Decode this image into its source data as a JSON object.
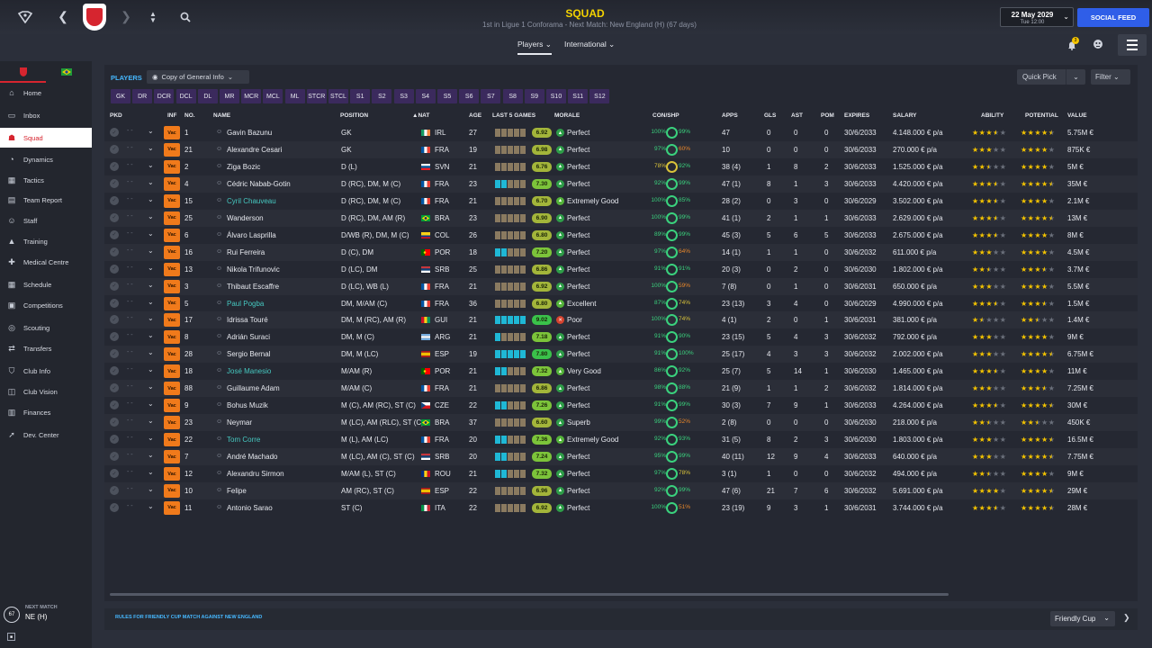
{
  "header": {
    "title": "SQUAD",
    "subtitle": "1st in Ligue 1 Conforama - Next Match: New England (H) (67 days)",
    "date": "22 May 2029",
    "time": "Tue 12:00",
    "social_feed": "SOCIAL FEED",
    "tabs": [
      {
        "label": "Players",
        "active": true
      },
      {
        "label": "International",
        "active": false
      }
    ],
    "notification_count": "3"
  },
  "sidebar": {
    "items": [
      {
        "label": "Home",
        "icon": "home-icon"
      },
      {
        "label": "Inbox",
        "icon": "inbox-icon"
      },
      {
        "label": "Squad",
        "icon": "squad-icon",
        "active": true
      },
      {
        "label": "Dynamics",
        "icon": "dynamics-icon"
      },
      {
        "label": "Tactics",
        "icon": "tactics-icon"
      },
      {
        "label": "Team Report",
        "icon": "report-icon"
      },
      {
        "label": "Staff",
        "icon": "staff-icon"
      },
      {
        "label": "Training",
        "icon": "training-icon"
      },
      {
        "label": "Medical Centre",
        "icon": "medical-icon"
      },
      {
        "label": "Schedule",
        "icon": "schedule-icon"
      },
      {
        "label": "Competitions",
        "icon": "competitions-icon"
      },
      {
        "label": "Scouting",
        "icon": "scouting-icon"
      },
      {
        "label": "Transfers",
        "icon": "transfers-icon"
      },
      {
        "label": "Club Info",
        "icon": "club-info-icon"
      },
      {
        "label": "Club Vision",
        "icon": "club-vision-icon"
      },
      {
        "label": "Finances",
        "icon": "finances-icon"
      },
      {
        "label": "Dev. Center",
        "icon": "dev-center-icon"
      }
    ],
    "next_match_label": "NEXT MATCH",
    "next_match_value": "NE (H)",
    "next_match_days": "67"
  },
  "toolbar": {
    "players_label": "PLAYERS",
    "view": "Copy of General Info",
    "quick_pick": "Quick Pick",
    "filter": "Filter"
  },
  "position_filters": [
    "GK",
    "DR",
    "DCR",
    "DCL",
    "DL",
    "MR",
    "MCR",
    "MCL",
    "ML",
    "STCR",
    "STCL",
    "S1",
    "S2",
    "S3",
    "S4",
    "S5",
    "S6",
    "S7",
    "S8",
    "S9",
    "S10",
    "S11",
    "S12"
  ],
  "columns": {
    "pkd": "PKD",
    "inf": "INF",
    "no": "NO.",
    "name": "NAME",
    "position": "POSITION",
    "nat": "NAT",
    "age": "AGE",
    "last5": "LAST 5 GAMES",
    "morale": "MORALE",
    "conshp": "CON/SHP",
    "apps": "APPS",
    "gls": "GLS",
    "ast": "AST",
    "pom": "POM",
    "expires": "EXPIRES",
    "salary": "SALARY",
    "ability": "ABILITY",
    "potential": "POTENTIAL",
    "value": "VALUE"
  },
  "inf_label": "Vac",
  "players": [
    {
      "no": "1",
      "name": "Gavin Bazunu",
      "pos": "GK",
      "nat": "IRL",
      "age": "27",
      "rating": "6.92",
      "morale": "Perfect",
      "con": "100%",
      "shp": "99%",
      "apps": "47",
      "gls": "0",
      "ast": "0",
      "pom": "0",
      "exp": "30/6/2033",
      "sal": "4.148.000 € p/a",
      "abi": 3.5,
      "pot": 4.5,
      "val": "5.75M €"
    },
    {
      "no": "21",
      "name": "Alexandre Cesari",
      "pos": "GK",
      "nat": "FRA",
      "age": "19",
      "rating": "6.98",
      "morale": "Perfect",
      "con": "97%",
      "shp": "60%",
      "apps": "10",
      "gls": "0",
      "ast": "0",
      "pom": "0",
      "exp": "30/6/2033",
      "sal": "270.000 € p/a",
      "abi": 3,
      "pot": 4,
      "val": "875K €"
    },
    {
      "no": "2",
      "name": "Ziga Bozic",
      "pos": "D (L)",
      "nat": "SVN",
      "age": "21",
      "rating": "6.76",
      "morale": "Perfect",
      "con": "78%",
      "shp": "92%",
      "apps": "38 (4)",
      "gls": "1",
      "ast": "8",
      "pom": "2",
      "exp": "30/6/2033",
      "sal": "1.525.000 € p/a",
      "abi": 2.5,
      "pot": 4,
      "val": "5M €"
    },
    {
      "no": "4",
      "name": "Cédric Nabab-Gotin",
      "pos": "D (RC), DM, M (C)",
      "nat": "FRA",
      "age": "23",
      "rating": "7.30",
      "morale": "Perfect",
      "con": "92%",
      "shp": "99%",
      "apps": "47 (1)",
      "gls": "8",
      "ast": "1",
      "pom": "3",
      "exp": "30/6/2033",
      "sal": "4.420.000 € p/a",
      "abi": 3.5,
      "pot": 4.5,
      "val": "35M €"
    },
    {
      "no": "15",
      "name": "Cyril Chauveau",
      "pos": "D (RC), DM, M (C)",
      "nat": "FRA",
      "age": "21",
      "rating": "6.70",
      "morale": "Extremely Good",
      "con": "100%",
      "shp": "85%",
      "apps": "28 (2)",
      "gls": "0",
      "ast": "3",
      "pom": "0",
      "exp": "30/6/2029",
      "sal": "3.502.000 € p/a",
      "abi": 3.5,
      "pot": 4,
      "val": "2.1M €",
      "hl": true
    },
    {
      "no": "25",
      "name": "Wanderson",
      "pos": "D (RC), DM, AM (R)",
      "nat": "BRA",
      "age": "23",
      "rating": "6.90",
      "morale": "Perfect",
      "con": "100%",
      "shp": "99%",
      "apps": "41 (1)",
      "gls": "2",
      "ast": "1",
      "pom": "1",
      "exp": "30/6/2033",
      "sal": "2.629.000 € p/a",
      "abi": 3.5,
      "pot": 4.5,
      "val": "13M €"
    },
    {
      "no": "6",
      "name": "Álvaro Lasprilla",
      "pos": "D/WB (R), DM, M (C)",
      "nat": "COL",
      "age": "26",
      "rating": "6.80",
      "morale": "Perfect",
      "con": "89%",
      "shp": "99%",
      "apps": "45 (3)",
      "gls": "5",
      "ast": "6",
      "pom": "5",
      "exp": "30/6/2033",
      "sal": "2.675.000 € p/a",
      "abi": 3.5,
      "pot": 4,
      "val": "8M €"
    },
    {
      "no": "16",
      "name": "Rui Ferreira",
      "pos": "D (C), DM",
      "nat": "POR",
      "age": "18",
      "rating": "7.20",
      "morale": "Perfect",
      "con": "97%",
      "shp": "64%",
      "apps": "14 (1)",
      "gls": "1",
      "ast": "1",
      "pom": "0",
      "exp": "30/6/2032",
      "sal": "611.000 € p/a",
      "abi": 3,
      "pot": 4,
      "val": "4.5M €"
    },
    {
      "no": "13",
      "name": "Nikola Trifunovic",
      "pos": "D (LC), DM",
      "nat": "SRB",
      "age": "25",
      "rating": "6.86",
      "morale": "Perfect",
      "con": "91%",
      "shp": "91%",
      "apps": "20 (3)",
      "gls": "0",
      "ast": "2",
      "pom": "0",
      "exp": "30/6/2030",
      "sal": "1.802.000 € p/a",
      "abi": 2.5,
      "pot": 3.5,
      "val": "3.7M €"
    },
    {
      "no": "3",
      "name": "Thibaut Escaffre",
      "pos": "D (LC), WB (L)",
      "nat": "FRA",
      "age": "21",
      "rating": "6.92",
      "morale": "Perfect",
      "con": "100%",
      "shp": "59%",
      "apps": "7 (8)",
      "gls": "0",
      "ast": "1",
      "pom": "0",
      "exp": "30/6/2031",
      "sal": "650.000 € p/a",
      "abi": 3,
      "pot": 4,
      "val": "5.5M €"
    },
    {
      "no": "5",
      "name": "Paul Pogba",
      "pos": "DM, M/AM (C)",
      "nat": "FRA",
      "age": "36",
      "rating": "6.80",
      "morale": "Excellent",
      "con": "87%",
      "shp": "74%",
      "apps": "23 (13)",
      "gls": "3",
      "ast": "4",
      "pom": "0",
      "exp": "30/6/2029",
      "sal": "4.990.000 € p/a",
      "abi": 3.5,
      "pot": 3.5,
      "val": "1.5M €",
      "hl": true
    },
    {
      "no": "17",
      "name": "Idrissa Touré",
      "pos": "DM, M (RC), AM (R)",
      "nat": "GUI",
      "age": "21",
      "rating": "9.02",
      "morale": "Poor",
      "con": "100%",
      "shp": "74%",
      "apps": "4 (1)",
      "gls": "2",
      "ast": "0",
      "pom": "1",
      "exp": "30/6/2031",
      "sal": "381.000 € p/a",
      "abi": 1.5,
      "pot": 2.5,
      "val": "1.4M €"
    },
    {
      "no": "8",
      "name": "Adrián Suraci",
      "pos": "DM, M (C)",
      "nat": "ARG",
      "age": "21",
      "rating": "7.18",
      "morale": "Perfect",
      "con": "91%",
      "shp": "90%",
      "apps": "23 (15)",
      "gls": "5",
      "ast": "4",
      "pom": "3",
      "exp": "30/6/2032",
      "sal": "792.000 € p/a",
      "abi": 3,
      "pot": 4,
      "val": "9M €"
    },
    {
      "no": "28",
      "name": "Sergio Bernal",
      "pos": "DM, M (LC)",
      "nat": "ESP",
      "age": "19",
      "rating": "7.80",
      "morale": "Perfect",
      "con": "91%",
      "shp": "100%",
      "apps": "25 (17)",
      "gls": "4",
      "ast": "3",
      "pom": "3",
      "exp": "30/6/2032",
      "sal": "2.002.000 € p/a",
      "abi": 3,
      "pot": 4.5,
      "val": "6.75M €"
    },
    {
      "no": "18",
      "name": "José Manesio",
      "pos": "M/AM (R)",
      "nat": "POR",
      "age": "21",
      "rating": "7.32",
      "morale": "Very Good",
      "con": "86%",
      "shp": "92%",
      "apps": "25 (7)",
      "gls": "5",
      "ast": "14",
      "pom": "1",
      "exp": "30/6/2030",
      "sal": "1.465.000 € p/a",
      "abi": 3.5,
      "pot": 4,
      "val": "11M €",
      "hl": true
    },
    {
      "no": "88",
      "name": "Guillaume Adam",
      "pos": "M/AM (C)",
      "nat": "FRA",
      "age": "21",
      "rating": "6.86",
      "morale": "Perfect",
      "con": "98%",
      "shp": "88%",
      "apps": "21 (9)",
      "gls": "1",
      "ast": "1",
      "pom": "2",
      "exp": "30/6/2032",
      "sal": "1.814.000 € p/a",
      "abi": 3,
      "pot": 3.5,
      "val": "7.25M €"
    },
    {
      "no": "9",
      "name": "Bohus Muzik",
      "pos": "M (C), AM (RC), ST (C)",
      "nat": "CZE",
      "age": "22",
      "rating": "7.26",
      "morale": "Perfect",
      "con": "91%",
      "shp": "99%",
      "apps": "30 (3)",
      "gls": "7",
      "ast": "9",
      "pom": "1",
      "exp": "30/6/2033",
      "sal": "4.264.000 € p/a",
      "abi": 3.5,
      "pot": 4.5,
      "val": "30M €"
    },
    {
      "no": "23",
      "name": "Neymar",
      "pos": "M (LC), AM (RLC), ST (C)",
      "nat": "BRA",
      "age": "37",
      "rating": "6.60",
      "morale": "Superb",
      "con": "99%",
      "shp": "52%",
      "apps": "2 (8)",
      "gls": "0",
      "ast": "0",
      "pom": "0",
      "exp": "30/6/2030",
      "sal": "218.000 € p/a",
      "abi": 2.5,
      "pot": 2.5,
      "val": "450K €"
    },
    {
      "no": "22",
      "name": "Tom Corre",
      "pos": "M (L), AM (LC)",
      "nat": "FRA",
      "age": "20",
      "rating": "7.36",
      "morale": "Extremely Good",
      "con": "92%",
      "shp": "93%",
      "apps": "31 (5)",
      "gls": "8",
      "ast": "2",
      "pom": "3",
      "exp": "30/6/2030",
      "sal": "1.803.000 € p/a",
      "abi": 3,
      "pot": 4.5,
      "val": "16.5M €",
      "hl": true
    },
    {
      "no": "7",
      "name": "André Machado",
      "pos": "M (LC), AM (C), ST (C)",
      "nat": "SRB",
      "age": "20",
      "rating": "7.24",
      "morale": "Perfect",
      "con": "95%",
      "shp": "99%",
      "apps": "40 (11)",
      "gls": "12",
      "ast": "9",
      "pom": "4",
      "exp": "30/6/2033",
      "sal": "640.000 € p/a",
      "abi": 3,
      "pot": 4.5,
      "val": "7.75M €"
    },
    {
      "no": "12",
      "name": "Alexandru Sirmon",
      "pos": "M/AM (L), ST (C)",
      "nat": "ROU",
      "age": "21",
      "rating": "7.32",
      "morale": "Perfect",
      "con": "97%",
      "shp": "78%",
      "apps": "3 (1)",
      "gls": "1",
      "ast": "0",
      "pom": "0",
      "exp": "30/6/2032",
      "sal": "494.000 € p/a",
      "abi": 2.5,
      "pot": 4,
      "val": "9M €"
    },
    {
      "no": "10",
      "name": "Felipe",
      "pos": "AM (RC), ST (C)",
      "nat": "ESP",
      "age": "22",
      "rating": "6.96",
      "morale": "Perfect",
      "con": "92%",
      "shp": "99%",
      "apps": "47 (6)",
      "gls": "21",
      "ast": "7",
      "pom": "6",
      "exp": "30/6/2032",
      "sal": "5.691.000 € p/a",
      "abi": 4,
      "pot": 4.5,
      "val": "29M €"
    },
    {
      "no": "11",
      "name": "Antonio Sarao",
      "pos": "ST (C)",
      "nat": "ITA",
      "age": "22",
      "rating": "6.92",
      "morale": "Perfect",
      "con": "100%",
      "shp": "51%",
      "apps": "23 (19)",
      "gls": "9",
      "ast": "3",
      "pom": "1",
      "exp": "30/6/2031",
      "sal": "3.744.000 € p/a",
      "abi": 3.5,
      "pot": 4.5,
      "val": "28M €"
    }
  ],
  "footer": {
    "rules_text": "RULES FOR FRIENDLY CUP MATCH AGAINST NEW ENGLAND",
    "competition": "Friendly Cup"
  },
  "colors": {
    "accent_blue": "#46b8ff",
    "title_yellow": "#f4d300",
    "club_red": "#d6252f",
    "social_blue": "#2f5ee8",
    "star_gold": "#f3c300"
  }
}
